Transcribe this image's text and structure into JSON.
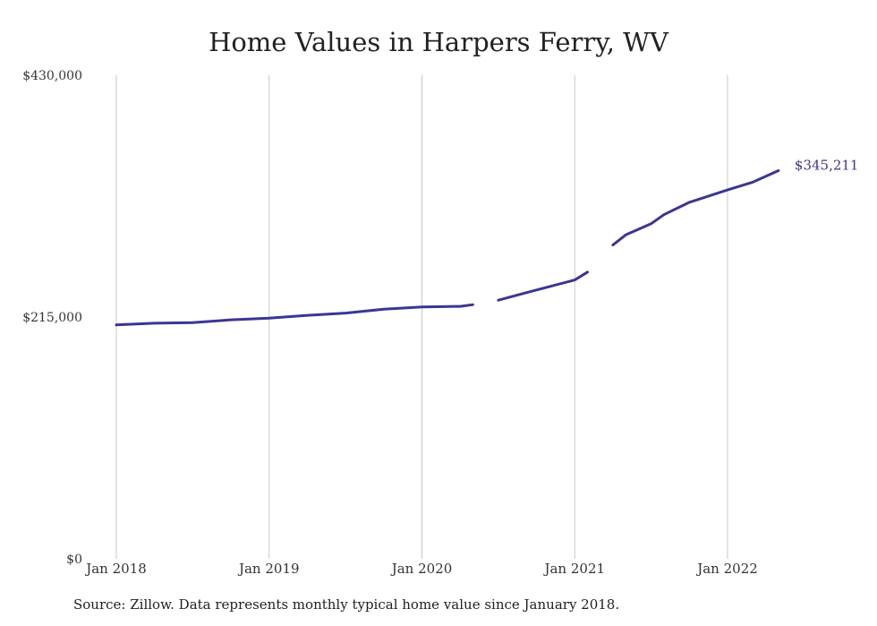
{
  "chart_data": {
    "type": "line",
    "title": "Home Values in Harpers Ferry, WV",
    "xlabel": "",
    "ylabel": "",
    "y_ticks": [
      {
        "value": 0,
        "label": "$0"
      },
      {
        "value": 215000,
        "label": "$215,000"
      },
      {
        "value": 430000,
        "label": "$430,000"
      }
    ],
    "ylim": [
      0,
      430000
    ],
    "x_ticks": [
      {
        "value": "2018-01",
        "label": "Jan 2018"
      },
      {
        "value": "2019-01",
        "label": "Jan 2019"
      },
      {
        "value": "2020-01",
        "label": "Jan 2020"
      },
      {
        "value": "2021-01",
        "label": "Jan 2021"
      },
      {
        "value": "2022-01",
        "label": "Jan 2022"
      }
    ],
    "grid": {
      "vertical": true,
      "horizontal": false
    },
    "legend": "none",
    "line_color": "#3b3594",
    "series": [
      {
        "segments": [
          [
            {
              "x": "2018-01",
              "y": 208000
            },
            {
              "x": "2018-04",
              "y": 209500
            },
            {
              "x": "2018-07",
              "y": 210000
            },
            {
              "x": "2018-10",
              "y": 212500
            },
            {
              "x": "2019-01",
              "y": 214000
            },
            {
              "x": "2019-04",
              "y": 216500
            },
            {
              "x": "2019-07",
              "y": 218500
            },
            {
              "x": "2019-10",
              "y": 222000
            },
            {
              "x": "2020-01",
              "y": 224000
            },
            {
              "x": "2020-04",
              "y": 224500
            },
            {
              "x": "2020-05",
              "y": 226000
            }
          ],
          [
            {
              "x": "2020-07",
              "y": 230000
            },
            {
              "x": "2020-09",
              "y": 236000
            },
            {
              "x": "2020-11",
              "y": 242000
            },
            {
              "x": "2021-01",
              "y": 248000
            },
            {
              "x": "2021-02",
              "y": 255000
            }
          ],
          [
            {
              "x": "2021-04",
              "y": 279000
            },
            {
              "x": "2021-05",
              "y": 288000
            },
            {
              "x": "2021-07",
              "y": 298000
            },
            {
              "x": "2021-08",
              "y": 306000
            },
            {
              "x": "2021-10",
              "y": 317000
            },
            {
              "x": "2022-01",
              "y": 328000
            },
            {
              "x": "2022-03",
              "y": 335000
            },
            {
              "x": "2022-05",
              "y": 345211
            }
          ]
        ]
      }
    ],
    "end_label": "$345,211"
  },
  "source_note": "Source: Zillow. Data represents monthly typical home value since January 2018."
}
